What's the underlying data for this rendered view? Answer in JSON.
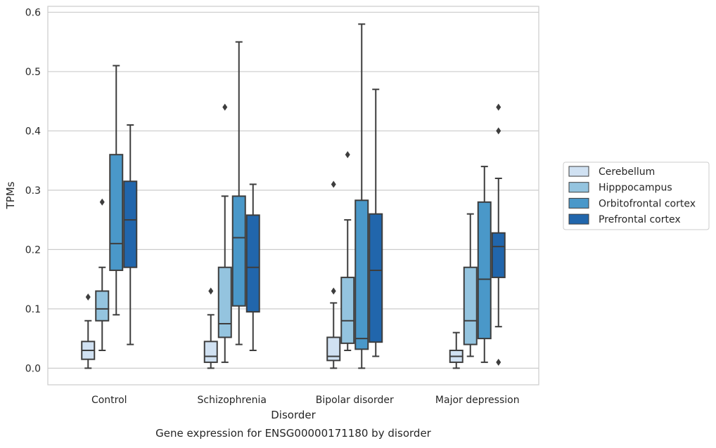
{
  "caption": "Gene expression for ENSG00000171180 by disorder",
  "chart_data": {
    "type": "box",
    "title": "",
    "xlabel": "Disorder",
    "ylabel": "TPMs",
    "ylim": [
      -0.028,
      0.61
    ],
    "yticks": [
      0.0,
      0.1,
      0.2,
      0.3,
      0.4,
      0.5,
      0.6
    ],
    "ytick_labels": [
      "0.0",
      "0.1",
      "0.2",
      "0.3",
      "0.4",
      "0.5",
      "0.6"
    ],
    "grid": "horizontal",
    "legend_position": "outside-right",
    "categories": [
      "Control",
      "Schizophrenia",
      "Bipolar disorder",
      "Major depression"
    ],
    "series": [
      {
        "name": "Cerebellum",
        "color": "#d0e1f2",
        "boxes": [
          {
            "whislo": 0.0,
            "q1": 0.015,
            "med": 0.03,
            "q3": 0.045,
            "whishi": 0.08,
            "fliers": [
              0.12
            ]
          },
          {
            "whislo": 0.0,
            "q1": 0.01,
            "med": 0.02,
            "q3": 0.045,
            "whishi": 0.09,
            "fliers": [
              0.13
            ]
          },
          {
            "whislo": 0.0,
            "q1": 0.013,
            "med": 0.02,
            "q3": 0.052,
            "whishi": 0.11,
            "fliers": [
              0.13,
              0.31
            ]
          },
          {
            "whislo": 0.0,
            "q1": 0.01,
            "med": 0.02,
            "q3": 0.03,
            "whishi": 0.06,
            "fliers": []
          }
        ]
      },
      {
        "name": "Hipppocampus",
        "color": "#94c4df",
        "boxes": [
          {
            "whislo": 0.03,
            "q1": 0.08,
            "med": 0.1,
            "q3": 0.13,
            "whishi": 0.17,
            "fliers": [
              0.28
            ]
          },
          {
            "whislo": 0.01,
            "q1": 0.052,
            "med": 0.075,
            "q3": 0.17,
            "whishi": 0.29,
            "fliers": [
              0.44
            ]
          },
          {
            "whislo": 0.03,
            "q1": 0.042,
            "med": 0.08,
            "q3": 0.153,
            "whishi": 0.25,
            "fliers": [
              0.36
            ]
          },
          {
            "whislo": 0.02,
            "q1": 0.04,
            "med": 0.08,
            "q3": 0.17,
            "whishi": 0.26,
            "fliers": []
          }
        ]
      },
      {
        "name": "Orbitofrontal cortex",
        "color": "#4a98c9",
        "boxes": [
          {
            "whislo": 0.09,
            "q1": 0.165,
            "med": 0.21,
            "q3": 0.36,
            "whishi": 0.51,
            "fliers": []
          },
          {
            "whislo": 0.04,
            "q1": 0.105,
            "med": 0.22,
            "q3": 0.29,
            "whishi": 0.55,
            "fliers": []
          },
          {
            "whislo": 0.0,
            "q1": 0.032,
            "med": 0.05,
            "q3": 0.283,
            "whishi": 0.58,
            "fliers": []
          },
          {
            "whislo": 0.01,
            "q1": 0.05,
            "med": 0.15,
            "q3": 0.28,
            "whishi": 0.34,
            "fliers": []
          }
        ]
      },
      {
        "name": "Prefrontal cortex",
        "color": "#2166ac",
        "boxes": [
          {
            "whislo": 0.04,
            "q1": 0.17,
            "med": 0.25,
            "q3": 0.315,
            "whishi": 0.41,
            "fliers": []
          },
          {
            "whislo": 0.03,
            "q1": 0.095,
            "med": 0.17,
            "q3": 0.258,
            "whishi": 0.31,
            "fliers": []
          },
          {
            "whislo": 0.02,
            "q1": 0.044,
            "med": 0.165,
            "q3": 0.26,
            "whishi": 0.47,
            "fliers": []
          },
          {
            "whislo": 0.07,
            "q1": 0.153,
            "med": 0.205,
            "q3": 0.228,
            "whishi": 0.32,
            "fliers": [
              0.01,
              0.4,
              0.44
            ]
          }
        ]
      }
    ]
  }
}
